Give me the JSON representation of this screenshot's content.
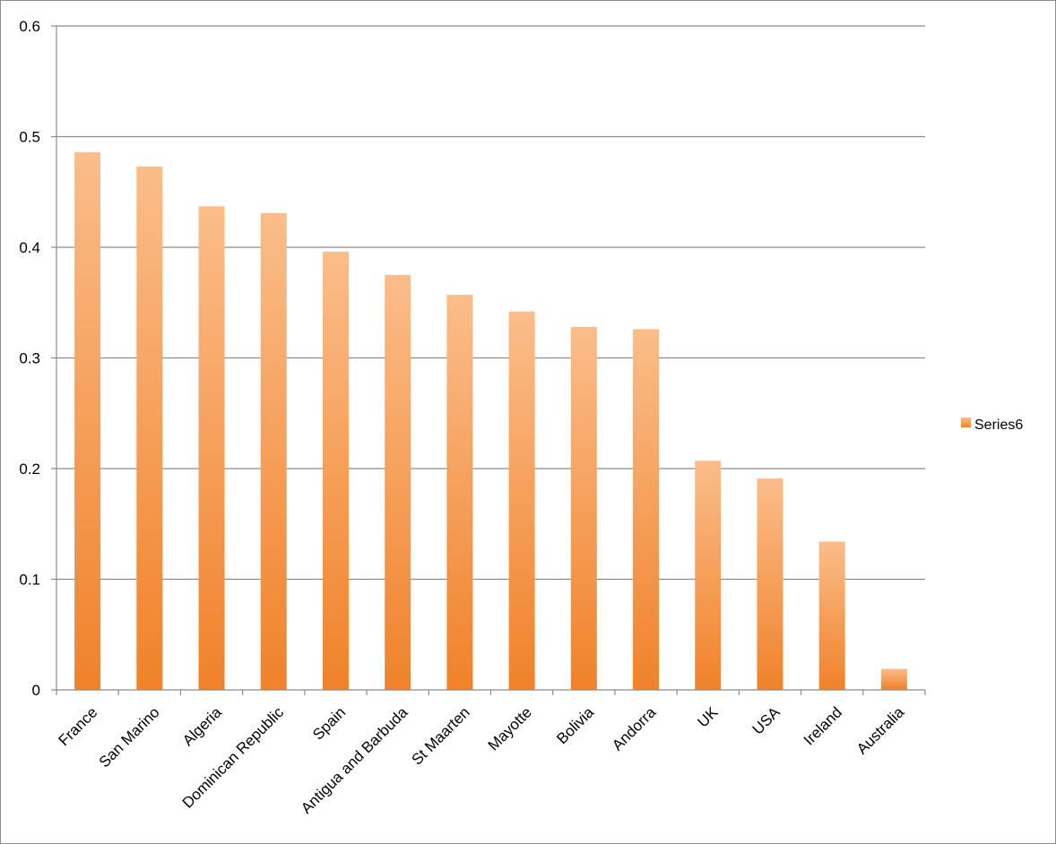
{
  "chart_data": {
    "type": "bar",
    "title": "",
    "xlabel": "",
    "ylabel": "",
    "categories": [
      "France",
      "San Marino",
      "Algeria",
      "Dominican Republic",
      "Spain",
      "Antigua and Barbuda",
      "St Maarten",
      "Mayotte",
      "Bolivia",
      "Andorra",
      "UK",
      "USA",
      "Ireland",
      "Australia"
    ],
    "series": [
      {
        "name": "Series6",
        "values": [
          0.486,
          0.473,
          0.437,
          0.431,
          0.396,
          0.375,
          0.357,
          0.342,
          0.328,
          0.326,
          0.207,
          0.191,
          0.134,
          0.019
        ]
      }
    ],
    "ylim": [
      0,
      0.6
    ],
    "yticks": [
      0,
      0.1,
      0.2,
      0.3,
      0.4,
      0.5,
      0.6
    ],
    "ytick_labels": [
      "0",
      "0.1",
      "0.2",
      "0.3",
      "0.4",
      "0.5",
      "0.6"
    ],
    "grid": true,
    "legend_position": "right",
    "colors": {
      "bar_top": "#fbbd8a",
      "bar_bottom": "#f0822a",
      "grid": "#8c8c8c",
      "axis": "#8c8c8c"
    }
  }
}
